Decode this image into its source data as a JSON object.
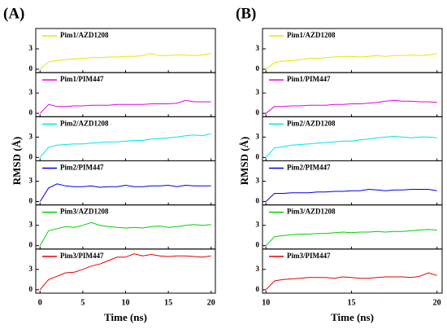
{
  "chart_data": [
    {
      "type": "line",
      "label": "(A)",
      "xlabel": "Time (ns)",
      "ylabel": "RMSD (Å)",
      "x": [
        0,
        1,
        2,
        3,
        4,
        5,
        6,
        7,
        8,
        9,
        10,
        11,
        12,
        13,
        14,
        15,
        16,
        17,
        18,
        19,
        20
      ],
      "xlim": [
        -0.5,
        20.5
      ],
      "xticks": [
        0,
        5,
        10,
        15,
        20
      ],
      "ylim": [
        -0.5,
        6
      ],
      "yticks": [
        0,
        3
      ],
      "series": [
        {
          "name": "Pim1/AZD1208",
          "color": "#e6e600",
          "values": [
            0,
            1.1,
            1.3,
            1.4,
            1.5,
            1.6,
            1.7,
            1.7,
            1.8,
            1.8,
            1.9,
            1.9,
            2.0,
            2.3,
            2.0,
            2.0,
            2.1,
            2.1,
            2.0,
            2.1,
            2.3
          ]
        },
        {
          "name": "Pim1/PIM447",
          "color": "#e600e6",
          "values": [
            0,
            1.3,
            1.0,
            1.0,
            1.1,
            1.1,
            1.2,
            1.2,
            1.2,
            1.3,
            1.3,
            1.3,
            1.3,
            1.4,
            1.4,
            1.4,
            1.5,
            1.9,
            1.7,
            1.7,
            1.7
          ]
        },
        {
          "name": "Pim2/AZD1208",
          "color": "#00e6e6",
          "values": [
            0,
            1.5,
            1.8,
            1.9,
            2.0,
            2.0,
            2.1,
            2.2,
            2.3,
            2.3,
            2.4,
            2.5,
            2.5,
            2.7,
            2.8,
            2.9,
            3.0,
            3.2,
            3.3,
            3.2,
            3.5
          ]
        },
        {
          "name": "Pim2/PIM447",
          "color": "#0000e6",
          "values": [
            0,
            2.0,
            2.6,
            2.3,
            2.2,
            2.2,
            2.3,
            2.1,
            2.2,
            2.2,
            2.4,
            2.2,
            2.2,
            2.3,
            2.3,
            2.4,
            2.2,
            2.4,
            2.3,
            2.3,
            2.3
          ]
        },
        {
          "name": "Pim3/AZD1208",
          "color": "#00d000",
          "values": [
            0,
            2.2,
            2.5,
            2.8,
            2.7,
            3.0,
            3.4,
            3.0,
            2.8,
            2.7,
            2.6,
            2.7,
            2.6,
            2.8,
            2.9,
            2.7,
            2.8,
            3.0,
            3.1,
            3.0,
            3.1
          ]
        },
        {
          "name": "Pim3/PIM447",
          "color": "#e60000",
          "values": [
            0,
            1.5,
            2.0,
            2.5,
            2.6,
            3.0,
            3.5,
            3.8,
            4.3,
            4.8,
            4.8,
            5.3,
            5.0,
            5.2,
            5.0,
            4.9,
            5.0,
            5.0,
            4.9,
            4.8,
            5.0
          ]
        }
      ]
    },
    {
      "type": "line",
      "label": "(B)",
      "xlabel": "Time (ns)",
      "ylabel": "RMSD (Å)",
      "x": [
        10,
        10.5,
        11,
        11.5,
        12,
        12.5,
        13,
        13.5,
        14,
        14.5,
        15,
        15.5,
        16,
        16.5,
        17,
        17.5,
        18,
        18.5,
        19,
        19.5,
        20
      ],
      "xlim": [
        9.8,
        20.3
      ],
      "xticks": [
        10,
        15,
        20
      ],
      "ylim": [
        -0.5,
        6
      ],
      "yticks": [
        0,
        3
      ],
      "series": [
        {
          "name": "Pim1/AZD1208",
          "color": "#e6e600",
          "values": [
            0,
            1.0,
            1.2,
            1.3,
            1.4,
            1.6,
            1.6,
            1.7,
            1.8,
            1.9,
            1.9,
            1.8,
            1.9,
            2.0,
            1.9,
            2.0,
            2.0,
            2.1,
            2.0,
            2.1,
            2.3
          ]
        },
        {
          "name": "Pim1/PIM447",
          "color": "#e600e6",
          "values": [
            0,
            1.0,
            1.0,
            1.1,
            1.1,
            1.2,
            1.2,
            1.2,
            1.3,
            1.3,
            1.4,
            1.4,
            1.5,
            1.6,
            1.8,
            1.9,
            1.8,
            1.8,
            1.7,
            1.7,
            1.6
          ]
        },
        {
          "name": "Pim2/AZD1208",
          "color": "#00e6e6",
          "values": [
            0,
            1.4,
            1.6,
            1.8,
            1.9,
            2.0,
            2.1,
            2.2,
            2.3,
            2.4,
            2.4,
            2.6,
            2.7,
            2.9,
            3.0,
            3.1,
            3.0,
            2.9,
            3.0,
            3.0,
            2.9
          ]
        },
        {
          "name": "Pim2/PIM447",
          "color": "#0000e6",
          "values": [
            0,
            1.2,
            1.2,
            1.3,
            1.3,
            1.3,
            1.4,
            1.4,
            1.5,
            1.5,
            1.6,
            1.6,
            1.8,
            1.7,
            1.6,
            1.7,
            1.7,
            1.8,
            1.8,
            1.8,
            1.6
          ]
        },
        {
          "name": "Pim3/AZD1208",
          "color": "#00d000",
          "values": [
            0,
            1.3,
            1.5,
            1.6,
            1.7,
            1.7,
            1.8,
            1.8,
            1.9,
            2.0,
            1.9,
            2.0,
            2.0,
            2.1,
            2.0,
            2.1,
            2.1,
            2.2,
            2.3,
            2.4,
            2.3
          ]
        },
        {
          "name": "Pim3/PIM447",
          "color": "#e60000",
          "values": [
            0,
            1.3,
            1.5,
            1.6,
            1.7,
            1.8,
            1.8,
            1.8,
            1.7,
            1.9,
            1.8,
            1.7,
            1.7,
            1.8,
            1.9,
            1.9,
            1.9,
            1.8,
            2.0,
            2.5,
            2.1
          ]
        }
      ]
    }
  ]
}
